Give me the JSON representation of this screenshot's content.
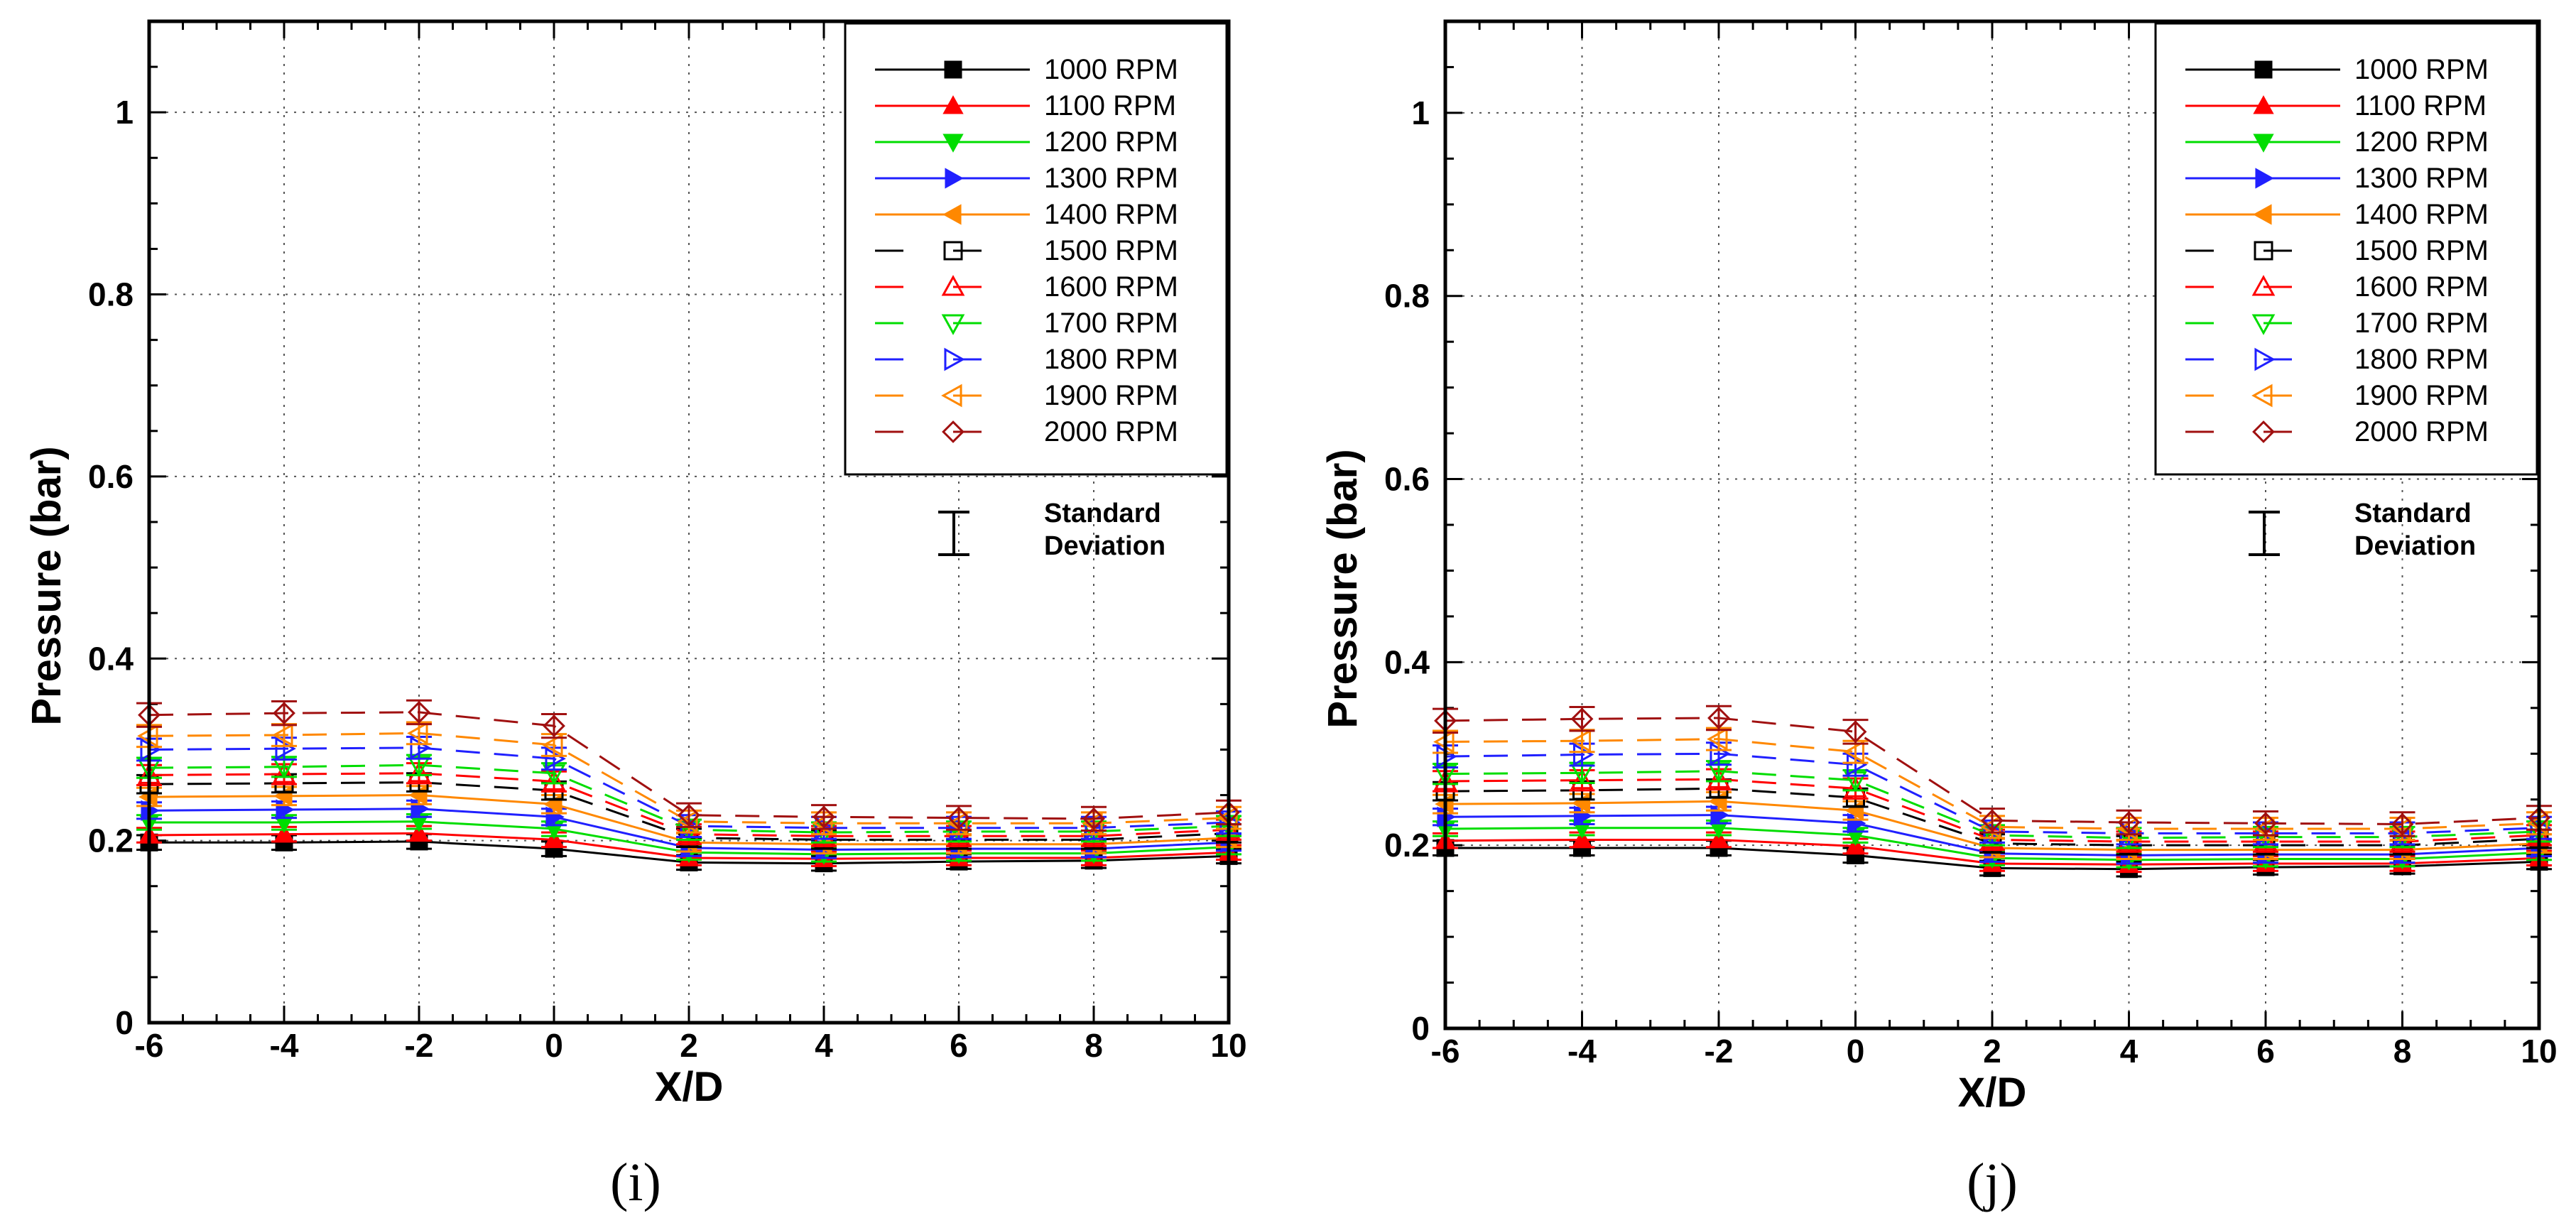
{
  "chart_data": [
    {
      "type": "line",
      "panel_label": "(i)",
      "xlabel": "X/D",
      "ylabel": "Pressure (bar)",
      "xlim": [
        -6,
        10
      ],
      "ylim": [
        0,
        1.1
      ],
      "xticks": [
        "-6",
        "-4",
        "-2",
        "0",
        "2",
        "4",
        "6",
        "8",
        "10"
      ],
      "yticks": [
        "0",
        "0.2",
        "0.4",
        "0.6",
        "0.8",
        "1"
      ],
      "grid": true,
      "legend_position": "top-right",
      "error_bar_label": [
        "Standard",
        "Deviation"
      ],
      "x": [
        -6,
        -4,
        -2,
        0,
        2,
        4,
        6,
        8,
        10
      ],
      "series": [
        {
          "name": "1000 RPM",
          "color": "#000000",
          "marker": "square-filled",
          "dash": false,
          "values": [
            0.198,
            0.198,
            0.199,
            0.191,
            0.176,
            0.175,
            0.177,
            0.178,
            0.183
          ],
          "sd": 0.008
        },
        {
          "name": "1100 RPM",
          "color": "#ff0000",
          "marker": "triangle-up-filled",
          "dash": false,
          "values": [
            0.206,
            0.207,
            0.208,
            0.201,
            0.181,
            0.18,
            0.181,
            0.181,
            0.187
          ],
          "sd": 0.008
        },
        {
          "name": "1200 RPM",
          "color": "#00dd00",
          "marker": "triangle-down-filled",
          "dash": false,
          "values": [
            0.22,
            0.22,
            0.221,
            0.213,
            0.187,
            0.185,
            0.186,
            0.186,
            0.193
          ],
          "sd": 0.008
        },
        {
          "name": "1300 RPM",
          "color": "#2020ff",
          "marker": "triangle-right-filled",
          "dash": false,
          "values": [
            0.233,
            0.234,
            0.235,
            0.226,
            0.192,
            0.19,
            0.191,
            0.191,
            0.198
          ],
          "sd": 0.009
        },
        {
          "name": "1400 RPM",
          "color": "#ff8800",
          "marker": "triangle-left-filled",
          "dash": false,
          "values": [
            0.248,
            0.249,
            0.25,
            0.24,
            0.198,
            0.196,
            0.196,
            0.196,
            0.203
          ],
          "sd": 0.01
        },
        {
          "name": "1500 RPM",
          "color": "#000000",
          "marker": "square-open",
          "dash": true,
          "values": [
            0.262,
            0.263,
            0.264,
            0.255,
            0.203,
            0.201,
            0.201,
            0.201,
            0.208
          ],
          "sd": 0.01
        },
        {
          "name": "1600 RPM",
          "color": "#ff0000",
          "marker": "triangle-up-open",
          "dash": true,
          "values": [
            0.272,
            0.273,
            0.274,
            0.265,
            0.207,
            0.205,
            0.205,
            0.205,
            0.212
          ],
          "sd": 0.011
        },
        {
          "name": "1700 RPM",
          "color": "#00dd00",
          "marker": "triangle-down-open",
          "dash": true,
          "values": [
            0.28,
            0.281,
            0.283,
            0.274,
            0.212,
            0.209,
            0.21,
            0.21,
            0.216
          ],
          "sd": 0.011
        },
        {
          "name": "1800 RPM",
          "color": "#2020ff",
          "marker": "triangle-right-open",
          "dash": true,
          "values": [
            0.3,
            0.301,
            0.302,
            0.29,
            0.216,
            0.214,
            0.214,
            0.214,
            0.22
          ],
          "sd": 0.012
        },
        {
          "name": "1900 RPM",
          "color": "#ff8800",
          "marker": "triangle-left-open",
          "dash": true,
          "values": [
            0.315,
            0.316,
            0.318,
            0.305,
            0.221,
            0.219,
            0.219,
            0.219,
            0.225
          ],
          "sd": 0.012
        },
        {
          "name": "2000 RPM",
          "color": "#a01010",
          "marker": "diamond-open",
          "dash": true,
          "values": [
            0.338,
            0.34,
            0.341,
            0.326,
            0.228,
            0.226,
            0.225,
            0.224,
            0.231
          ],
          "sd": 0.013
        }
      ]
    },
    {
      "type": "line",
      "panel_label": "(j)",
      "xlabel": "X/D",
      "ylabel": "Pressure (bar)",
      "xlim": [
        -6,
        10
      ],
      "ylim": [
        0,
        1.1
      ],
      "xticks": [
        "-6",
        "-4",
        "-2",
        "0",
        "2",
        "4",
        "6",
        "8",
        "10"
      ],
      "yticks": [
        "0",
        "0.2",
        "0.4",
        "0.6",
        "0.8",
        "1"
      ],
      "grid": true,
      "legend_position": "top-right",
      "error_bar_label": [
        "Standard",
        "Deviation"
      ],
      "x": [
        -6,
        -4,
        -2,
        0,
        2,
        4,
        6,
        8,
        10
      ],
      "series": [
        {
          "name": "1000 RPM",
          "color": "#000000",
          "marker": "square-filled",
          "dash": false,
          "values": [
            0.197,
            0.197,
            0.197,
            0.189,
            0.175,
            0.174,
            0.176,
            0.177,
            0.182
          ],
          "sd": 0.008
        },
        {
          "name": "1100 RPM",
          "color": "#ff0000",
          "marker": "triangle-up-filled",
          "dash": false,
          "values": [
            0.205,
            0.206,
            0.206,
            0.199,
            0.18,
            0.179,
            0.18,
            0.18,
            0.186
          ],
          "sd": 0.008
        },
        {
          "name": "1200 RPM",
          "color": "#00dd00",
          "marker": "triangle-down-filled",
          "dash": false,
          "values": [
            0.218,
            0.219,
            0.219,
            0.211,
            0.186,
            0.184,
            0.185,
            0.185,
            0.192
          ],
          "sd": 0.008
        },
        {
          "name": "1300 RPM",
          "color": "#2020ff",
          "marker": "triangle-right-filled",
          "dash": false,
          "values": [
            0.231,
            0.232,
            0.233,
            0.224,
            0.191,
            0.189,
            0.19,
            0.19,
            0.197
          ],
          "sd": 0.009
        },
        {
          "name": "1400 RPM",
          "color": "#ff8800",
          "marker": "triangle-left-filled",
          "dash": false,
          "values": [
            0.245,
            0.246,
            0.248,
            0.238,
            0.197,
            0.195,
            0.195,
            0.195,
            0.202
          ],
          "sd": 0.01
        },
        {
          "name": "1500 RPM",
          "color": "#000000",
          "marker": "square-open",
          "dash": true,
          "values": [
            0.259,
            0.26,
            0.262,
            0.252,
            0.202,
            0.2,
            0.2,
            0.2,
            0.207
          ],
          "sd": 0.01
        },
        {
          "name": "1600 RPM",
          "color": "#ff0000",
          "marker": "triangle-up-open",
          "dash": true,
          "values": [
            0.27,
            0.271,
            0.272,
            0.262,
            0.206,
            0.204,
            0.204,
            0.204,
            0.211
          ],
          "sd": 0.011
        },
        {
          "name": "1700 RPM",
          "color": "#00dd00",
          "marker": "triangle-down-open",
          "dash": true,
          "values": [
            0.278,
            0.279,
            0.281,
            0.271,
            0.211,
            0.208,
            0.209,
            0.209,
            0.215
          ],
          "sd": 0.011
        },
        {
          "name": "1800 RPM",
          "color": "#2020ff",
          "marker": "triangle-right-open",
          "dash": true,
          "values": [
            0.297,
            0.299,
            0.3,
            0.288,
            0.215,
            0.213,
            0.213,
            0.213,
            0.219
          ],
          "sd": 0.012
        },
        {
          "name": "1900 RPM",
          "color": "#ff8800",
          "marker": "triangle-left-open",
          "dash": true,
          "values": [
            0.313,
            0.314,
            0.316,
            0.302,
            0.22,
            0.218,
            0.218,
            0.218,
            0.224
          ],
          "sd": 0.012
        },
        {
          "name": "2000 RPM",
          "color": "#a01010",
          "marker": "diamond-open",
          "dash": true,
          "values": [
            0.336,
            0.338,
            0.339,
            0.324,
            0.227,
            0.225,
            0.224,
            0.223,
            0.23
          ],
          "sd": 0.013
        }
      ]
    }
  ]
}
